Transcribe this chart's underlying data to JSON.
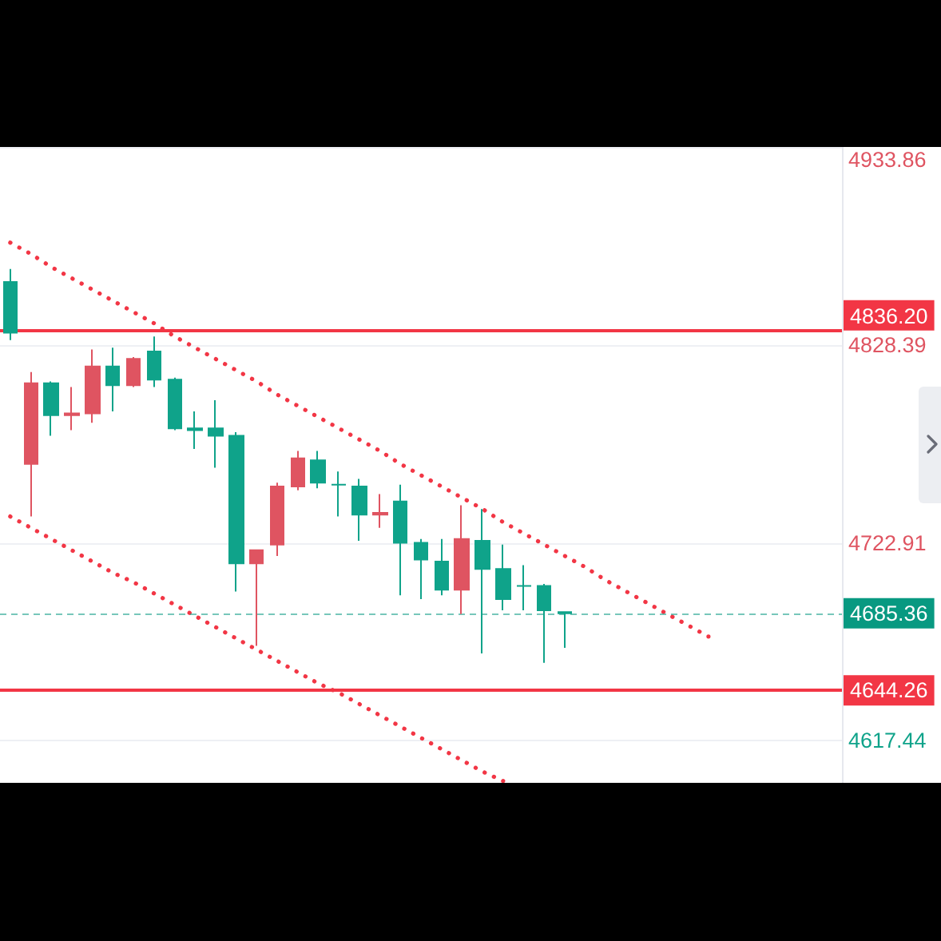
{
  "chart_data": {
    "type": "candlestick",
    "categories": [
      null,
      null,
      null,
      null,
      null,
      null,
      null,
      null,
      null,
      null,
      null,
      null,
      null,
      null,
      null,
      null,
      null,
      null,
      null,
      null,
      null,
      null,
      null,
      null,
      null,
      null,
      null,
      null,
      null,
      null,
      null,
      null,
      null,
      null,
      null,
      null,
      null,
      null,
      null,
      null,
      null
    ],
    "ohlc": [
      [
        4862,
        4869,
        4831,
        4835
      ],
      [
        4765,
        4814,
        4737,
        4808
      ],
      [
        4808,
        4809,
        4780,
        4791
      ],
      [
        4791,
        4806,
        4783,
        4792
      ],
      [
        4792,
        4826,
        4787,
        4817
      ],
      [
        4817,
        4827,
        4793,
        4807
      ],
      [
        4807,
        4822,
        4806,
        4821
      ],
      [
        4825,
        4833,
        4806,
        4810
      ],
      [
        4810,
        4811,
        4783,
        4784
      ],
      [
        4784,
        4793,
        4773,
        4783
      ],
      [
        4784,
        4799,
        4763,
        4780
      ],
      [
        4780,
        4782,
        4697,
        4712
      ],
      [
        4712,
        4719,
        4668,
        4719
      ],
      [
        4722,
        4755,
        4716,
        4753
      ],
      [
        4753,
        4772,
        4751,
        4768
      ],
      [
        4767,
        4772,
        4752,
        4755
      ],
      [
        4754,
        4761,
        4737,
        4754
      ],
      [
        4753,
        4757,
        4724,
        4738
      ],
      [
        4738,
        4749,
        4731,
        4739
      ],
      [
        4745,
        4754,
        4695,
        4723
      ],
      [
        4723,
        4725,
        4693,
        4714
      ],
      [
        4713,
        4725,
        4695,
        4698
      ],
      [
        4698,
        4743,
        4685,
        4725
      ],
      [
        4724,
        4741,
        4664,
        4709
      ],
      [
        4709,
        4722,
        4687,
        4693
      ],
      [
        4700,
        4711,
        4687,
        4700
      ],
      [
        4700,
        4701,
        4659,
        4687
      ],
      [
        4686,
        4686,
        4667,
        4685.36
      ],
      null,
      null,
      null,
      null,
      null,
      null,
      null,
      null,
      null,
      null,
      null,
      null,
      null
    ],
    "colors": [
      "#0fa38a",
      "#df5461",
      "#0fa38a",
      "#df5461",
      "#df5461",
      "#0fa38a",
      "#df5461",
      "#0fa38a",
      "#0fa38a",
      "#0fa38a",
      "#0fa38a",
      "#0fa38a",
      "#df5461",
      "#df5461",
      "#df5461",
      "#0fa38a",
      "#0fa38a",
      "#0fa38a",
      "#df5461",
      "#0fa38a",
      "#0fa38a",
      "#0fa38a",
      "#df5461",
      "#0fa38a",
      "#0fa38a",
      "#0fa38a",
      "#0fa38a",
      "#0fa38a",
      null,
      null,
      null,
      null,
      null,
      null,
      null,
      null,
      null,
      null,
      null,
      null,
      null
    ],
    "series": [
      {
        "type": "line",
        "color": "#f23645",
        "line_style": "dotted",
        "values": [
          4883,
          4877,
          4870,
          4864,
          4858,
          4852,
          4846,
          4840,
          4833,
          4827,
          4821,
          4815,
          4809,
          4802,
          4796,
          4790,
          4784,
          4778,
          4772,
          4765,
          4759,
          4753,
          4747,
          4741,
          4734,
          4728,
          4722,
          4716,
          4710,
          4703,
          4697,
          4691,
          4685,
          4679,
          4673,
          null,
          null,
          null,
          null,
          null,
          null
        ]
      },
      {
        "type": "line",
        "color": "#f23645",
        "line_style": "dotted",
        "values": [
          4737,
          4731,
          4725,
          4719,
          4713,
          4707,
          4702,
          4696,
          4690,
          4684,
          4678,
          4672,
          4666,
          4660,
          4654,
          4648,
          4643,
          4637,
          4631,
          4625,
          4619,
          4613,
          4607,
          4601,
          4596,
          null,
          null,
          null,
          null,
          null,
          null,
          null,
          null,
          null,
          null,
          null,
          null,
          null,
          null,
          null,
          null
        ]
      }
    ],
    "ylim": [
      4595,
      4934
    ],
    "yticks": [
      4617.44,
      4722.91,
      4828.39,
      4933.86
    ],
    "grid": "y",
    "tick_labels": "y",
    "ref_lines": [
      {
        "axis": "y",
        "value": 4836.2,
        "label": "4836.20",
        "color": "#f23645",
        "line_style": "solid"
      },
      {
        "axis": "y",
        "value": 4685.36,
        "label": "4685.36",
        "color": "#089981",
        "line_style": "dashed"
      },
      {
        "axis": "y",
        "value": 4644.26,
        "label": "4644.26",
        "color": "#f23645",
        "line_style": "solid"
      }
    ]
  }
}
